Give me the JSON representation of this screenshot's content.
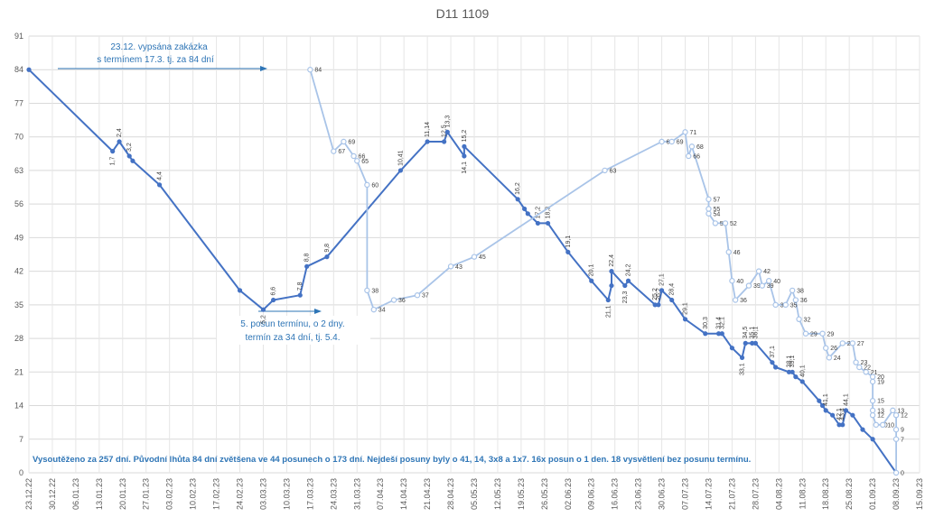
{
  "chart_data": {
    "type": "line",
    "title": "D11 1109",
    "ylim": [
      0,
      91
    ],
    "yticks": [
      0,
      7,
      14,
      21,
      28,
      35,
      42,
      49,
      56,
      63,
      70,
      77,
      84,
      91
    ],
    "xlim": [
      "2022-12-23",
      "2023-09-15"
    ],
    "xticks": [
      "23.12.22",
      "30.12.22",
      "06.01.23",
      "13.01.23",
      "20.01.23",
      "27.01.23",
      "03.02.23",
      "10.02.23",
      "17.02.23",
      "24.02.23",
      "03.03.23",
      "10.03.23",
      "17.03.23",
      "24.03.23",
      "31.03.23",
      "07.04.23",
      "14.04.23",
      "21.04.23",
      "28.04.23",
      "05.05.23",
      "12.05.23",
      "19.05.23",
      "26.05.23",
      "02.06.23",
      "09.06.23",
      "16.06.23",
      "23.06.23",
      "30.06.23",
      "07.07.23",
      "14.07.23",
      "21.07.23",
      "28.07.23",
      "04.08.23",
      "11.08.23",
      "18.08.23",
      "25.08.23",
      "01.09.23",
      "08.09.23",
      "15.09.23"
    ],
    "grid": true,
    "legend": "none",
    "series": [
      {
        "color": "#4472c4",
        "points": [
          {
            "x": "2022-12-23",
            "y": 84,
            "label": ""
          },
          {
            "x": "2023-01-17",
            "y": 67,
            "label": "1,7"
          },
          {
            "x": "2023-01-19",
            "y": 69,
            "label": "2,4"
          },
          {
            "x": "2023-01-22",
            "y": 66,
            "label": "3,2"
          },
          {
            "x": "2023-01-23",
            "y": 65,
            "label": ""
          },
          {
            "x": "2023-01-31",
            "y": 60,
            "label": "4,4"
          },
          {
            "x": "2023-02-24",
            "y": 38,
            "label": ""
          },
          {
            "x": "2023-03-03",
            "y": 34,
            "label": "5,2"
          },
          {
            "x": "2023-03-06",
            "y": 36,
            "label": "6,6"
          },
          {
            "x": "2023-03-14",
            "y": 37,
            "label": "7,8"
          },
          {
            "x": "2023-03-16",
            "y": 43,
            "label": "8,8"
          },
          {
            "x": "2023-03-22",
            "y": 45,
            "label": "9,8"
          },
          {
            "x": "2023-04-13",
            "y": 63,
            "label": "10,41"
          },
          {
            "x": "2023-04-21",
            "y": 69,
            "label": "11,14"
          },
          {
            "x": "2023-04-26",
            "y": 69,
            "label": "12,5"
          },
          {
            "x": "2023-04-27",
            "y": 71,
            "label": "13,3"
          },
          {
            "x": "2023-05-02",
            "y": 66,
            "label": "14,1"
          },
          {
            "x": "2023-05-02",
            "y": 68,
            "label": "15,2"
          },
          {
            "x": "2023-05-18",
            "y": 57,
            "label": "16,2"
          },
          {
            "x": "2023-05-20",
            "y": 55,
            "label": ""
          },
          {
            "x": "2023-05-21",
            "y": 54,
            "label": ""
          },
          {
            "x": "2023-05-24",
            "y": 52,
            "label": "17,2"
          },
          {
            "x": "2023-05-27",
            "y": 52,
            "label": "18,3"
          },
          {
            "x": "2023-06-02",
            "y": 46,
            "label": "19,1"
          },
          {
            "x": "2023-06-09",
            "y": 40,
            "label": "20,1"
          },
          {
            "x": "2023-06-14",
            "y": 36,
            "label": "21,1"
          },
          {
            "x": "2023-06-15",
            "y": 39,
            "label": ""
          },
          {
            "x": "2023-06-15",
            "y": 42,
            "label": "22,4"
          },
          {
            "x": "2023-06-19",
            "y": 39,
            "label": "23,3"
          },
          {
            "x": "2023-06-20",
            "y": 40,
            "label": "24,2"
          },
          {
            "x": "2023-06-28",
            "y": 35,
            "label": "25,2"
          },
          {
            "x": "2023-06-29",
            "y": 35,
            "label": "26,2"
          },
          {
            "x": "2023-06-30",
            "y": 38,
            "label": "27,1"
          },
          {
            "x": "2023-07-03",
            "y": 36,
            "label": "28,4"
          },
          {
            "x": "2023-07-07",
            "y": 32,
            "label": "29,1"
          },
          {
            "x": "2023-07-13",
            "y": 29,
            "label": "30,3"
          },
          {
            "x": "2023-07-17",
            "y": 29,
            "label": "31,4"
          },
          {
            "x": "2023-07-18",
            "y": 29,
            "label": "32,1"
          },
          {
            "x": "2023-07-21",
            "y": 26,
            "label": ""
          },
          {
            "x": "2023-07-24",
            "y": 24,
            "label": "33,1"
          },
          {
            "x": "2023-07-25",
            "y": 27,
            "label": "34,5"
          },
          {
            "x": "2023-07-27",
            "y": 27,
            "label": "35,1"
          },
          {
            "x": "2023-07-28",
            "y": 27,
            "label": "36,1"
          },
          {
            "x": "2023-08-02",
            "y": 23,
            "label": "37,1"
          },
          {
            "x": "2023-08-03",
            "y": 22,
            "label": ""
          },
          {
            "x": "2023-08-07",
            "y": 21,
            "label": "38,1"
          },
          {
            "x": "2023-08-08",
            "y": 21,
            "label": "39,1"
          },
          {
            "x": "2023-08-09",
            "y": 20,
            "label": ""
          },
          {
            "x": "2023-08-11",
            "y": 19,
            "label": "40,1"
          },
          {
            "x": "2023-08-16",
            "y": 15,
            "label": ""
          },
          {
            "x": "2023-08-17",
            "y": 14,
            "label": ""
          },
          {
            "x": "2023-08-18",
            "y": 13,
            "label": "41,1"
          },
          {
            "x": "2023-08-20",
            "y": 12,
            "label": ""
          },
          {
            "x": "2023-08-22",
            "y": 10,
            "label": "42,1"
          },
          {
            "x": "2023-08-23",
            "y": 10,
            "label": "43,4"
          },
          {
            "x": "2023-08-24",
            "y": 13,
            "label": "44,1"
          },
          {
            "x": "2023-08-26",
            "y": 12,
            "label": ""
          },
          {
            "x": "2023-08-29",
            "y": 9,
            "label": ""
          },
          {
            "x": "2023-09-01",
            "y": 7,
            "label": ""
          },
          {
            "x": "2023-09-08",
            "y": 0,
            "label": ""
          }
        ]
      },
      {
        "color": "#a9c4e8",
        "points": [
          {
            "x": "2023-03-17",
            "y": 84,
            "label": "84"
          },
          {
            "x": "2023-03-24",
            "y": 67,
            "label": "67"
          },
          {
            "x": "2023-03-27",
            "y": 69,
            "label": "69"
          },
          {
            "x": "2023-03-30",
            "y": 66,
            "label": "66"
          },
          {
            "x": "2023-03-31",
            "y": 65,
            "label": "65"
          },
          {
            "x": "2023-04-03",
            "y": 60,
            "label": "60"
          },
          {
            "x": "2023-04-03",
            "y": 38,
            "label": "38"
          },
          {
            "x": "2023-04-05",
            "y": 34,
            "label": "34"
          },
          {
            "x": "2023-04-11",
            "y": 36,
            "label": "36"
          },
          {
            "x": "2023-04-18",
            "y": 37,
            "label": "37"
          },
          {
            "x": "2023-04-28",
            "y": 43,
            "label": "43"
          },
          {
            "x": "2023-05-05",
            "y": 45,
            "label": "45"
          },
          {
            "x": "2023-06-13",
            "y": 63,
            "label": "63"
          },
          {
            "x": "2023-06-30",
            "y": 69,
            "label": "69"
          },
          {
            "x": "2023-07-03",
            "y": 69,
            "label": "69"
          },
          {
            "x": "2023-07-07",
            "y": 71,
            "label": "71"
          },
          {
            "x": "2023-07-08",
            "y": 66,
            "label": "66"
          },
          {
            "x": "2023-07-09",
            "y": 68,
            "label": "68"
          },
          {
            "x": "2023-07-14",
            "y": 57,
            "label": "57"
          },
          {
            "x": "2023-07-14",
            "y": 55,
            "label": "55"
          },
          {
            "x": "2023-07-14",
            "y": 54,
            "label": "54"
          },
          {
            "x": "2023-07-16",
            "y": 52,
            "label": "52"
          },
          {
            "x": "2023-07-19",
            "y": 52,
            "label": "52"
          },
          {
            "x": "2023-07-20",
            "y": 46,
            "label": "46"
          },
          {
            "x": "2023-07-21",
            "y": 40,
            "label": "40"
          },
          {
            "x": "2023-07-22",
            "y": 36,
            "label": "36"
          },
          {
            "x": "2023-07-26",
            "y": 39,
            "label": "39"
          },
          {
            "x": "2023-07-29",
            "y": 42,
            "label": "42"
          },
          {
            "x": "2023-07-30",
            "y": 39,
            "label": "39"
          },
          {
            "x": "2023-08-01",
            "y": 40,
            "label": "40"
          },
          {
            "x": "2023-08-03",
            "y": 35,
            "label": "35"
          },
          {
            "x": "2023-08-06",
            "y": 35,
            "label": "35"
          },
          {
            "x": "2023-08-08",
            "y": 38,
            "label": "38"
          },
          {
            "x": "2023-08-09",
            "y": 36,
            "label": "36"
          },
          {
            "x": "2023-08-10",
            "y": 32,
            "label": "32"
          },
          {
            "x": "2023-08-12",
            "y": 29,
            "label": "29"
          },
          {
            "x": "2023-08-17",
            "y": 29,
            "label": "29"
          },
          {
            "x": "2023-08-18",
            "y": 26,
            "label": "26"
          },
          {
            "x": "2023-08-19",
            "y": 24,
            "label": "24"
          },
          {
            "x": "2023-08-23",
            "y": 27,
            "label": "27"
          },
          {
            "x": "2023-08-26",
            "y": 27,
            "label": "27"
          },
          {
            "x": "2023-08-27",
            "y": 23,
            "label": "23"
          },
          {
            "x": "2023-08-28",
            "y": 22,
            "label": "22"
          },
          {
            "x": "2023-08-30",
            "y": 21,
            "label": "21"
          },
          {
            "x": "2023-09-01",
            "y": 20,
            "label": "20"
          },
          {
            "x": "2023-09-01",
            "y": 19,
            "label": "19"
          },
          {
            "x": "2023-09-01",
            "y": 15,
            "label": "15"
          },
          {
            "x": "2023-09-01",
            "y": 13,
            "label": "13"
          },
          {
            "x": "2023-09-01",
            "y": 12,
            "label": "12"
          },
          {
            "x": "2023-09-02",
            "y": 10,
            "label": "10"
          },
          {
            "x": "2023-09-04",
            "y": 10,
            "label": "10"
          },
          {
            "x": "2023-09-07",
            "y": 13,
            "label": "13"
          },
          {
            "x": "2023-09-08",
            "y": 12,
            "label": "12"
          },
          {
            "x": "2023-09-08",
            "y": 9,
            "label": "9"
          },
          {
            "x": "2023-09-08",
            "y": 7,
            "label": "7"
          },
          {
            "x": "2023-09-08",
            "y": 0,
            "label": "0"
          }
        ]
      }
    ],
    "annotations": [
      {
        "id": "top",
        "lines": [
          "23.12. vypsána zakázka",
          "s termínem 17.3. tj. za 84 dní"
        ]
      },
      {
        "id": "mid",
        "lines": [
          "5. posun termínu, o 2 dny.",
          "termín za 34 dní, tj. 5.4."
        ]
      }
    ],
    "footer": "Vysoutěženo za 257 dní. Původní lhůta 84 dní zvětšena ve 44 posunech o 173 dní. Nejdeší posuny byly o 41, 14, 3x8 a 1x7. 16x posun o 1 den. 18 vysvětlení bez posunu termínu."
  }
}
